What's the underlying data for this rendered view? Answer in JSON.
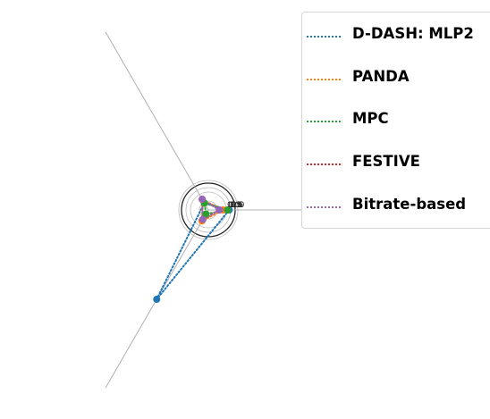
{
  "chart_data": {
    "type": "radar",
    "axes": [
      "",
      "",
      ""
    ],
    "radial_ticks": [
      "0.0",
      "0.5",
      "1.0",
      "1.5",
      "2.0"
    ],
    "rmax": 2.0,
    "series": [
      {
        "name": "D-DASH: MLP2",
        "color": "#1f77b4",
        "values": [
          1.55,
          0.6,
          7.7
        ]
      },
      {
        "name": "PANDA",
        "color": "#ff7f0e",
        "values": [
          1.1,
          0.88,
          0.95
        ]
      },
      {
        "name": "MPC",
        "color": "#2ca02c",
        "values": [
          1.43,
          0.58,
          0.35
        ]
      },
      {
        "name": "FESTIVE",
        "color": "#d62728",
        "values": [
          0.82,
          0.92,
          0.82
        ]
      },
      {
        "name": "Bitrate-based",
        "color": "#9467bd",
        "values": [
          0.82,
          0.92,
          0.82
        ]
      }
    ],
    "legend_position": "upper-right"
  }
}
